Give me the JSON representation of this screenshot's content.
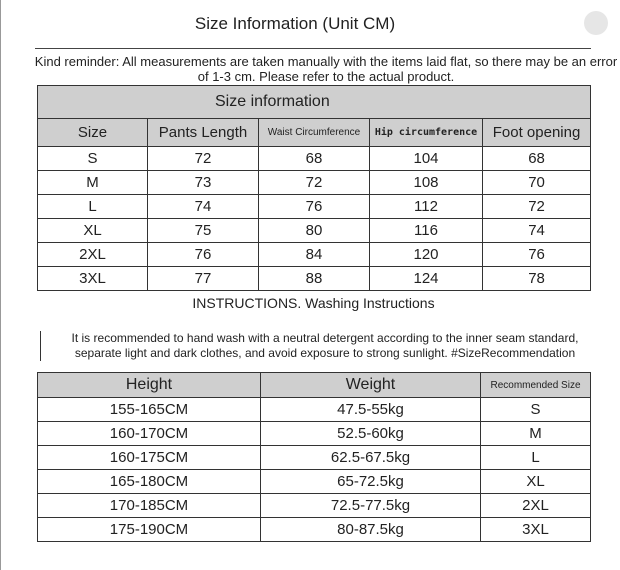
{
  "title": "Size Information (Unit CM)",
  "reminder": "Kind reminder: All measurements are taken manually with the items laid flat, so there may be an error of 1-3 cm. Please refer to the actual product.",
  "size_table": {
    "caption": "Size information",
    "headers": [
      "Size",
      "Pants Length",
      "Waist Circumference",
      "Hip circumference",
      "Foot opening"
    ],
    "rows": [
      [
        "S",
        "72",
        "68",
        "104",
        "68"
      ],
      [
        "M",
        "73",
        "72",
        "108",
        "70"
      ],
      [
        "L",
        "74",
        "76",
        "112",
        "72"
      ],
      [
        "XL",
        "75",
        "80",
        "116",
        "74"
      ],
      [
        "2XL",
        "76",
        "84",
        "120",
        "76"
      ],
      [
        "3XL",
        "77",
        "88",
        "124",
        "78"
      ]
    ]
  },
  "instructions": {
    "heading": "INSTRUCTIONS. Washing Instructions",
    "text": "It is recommended to hand wash with a neutral detergent according to the inner seam standard, separate light and dark clothes, and avoid exposure to strong sunlight. #SizeRecommendation"
  },
  "recommend_table": {
    "headers": [
      "Height",
      "Weight",
      "Recommended Size"
    ],
    "rows": [
      [
        "155-165CM",
        "47.5-55kg",
        "S"
      ],
      [
        "160-170CM",
        "52.5-60kg",
        "M"
      ],
      [
        "160-175CM",
        "62.5-67.5kg",
        "L"
      ],
      [
        "165-180CM",
        "65-72.5kg",
        "XL"
      ],
      [
        "170-185CM",
        "72.5-77.5kg",
        "2XL"
      ],
      [
        "175-190CM",
        "80-87.5kg",
        "3XL"
      ]
    ]
  }
}
